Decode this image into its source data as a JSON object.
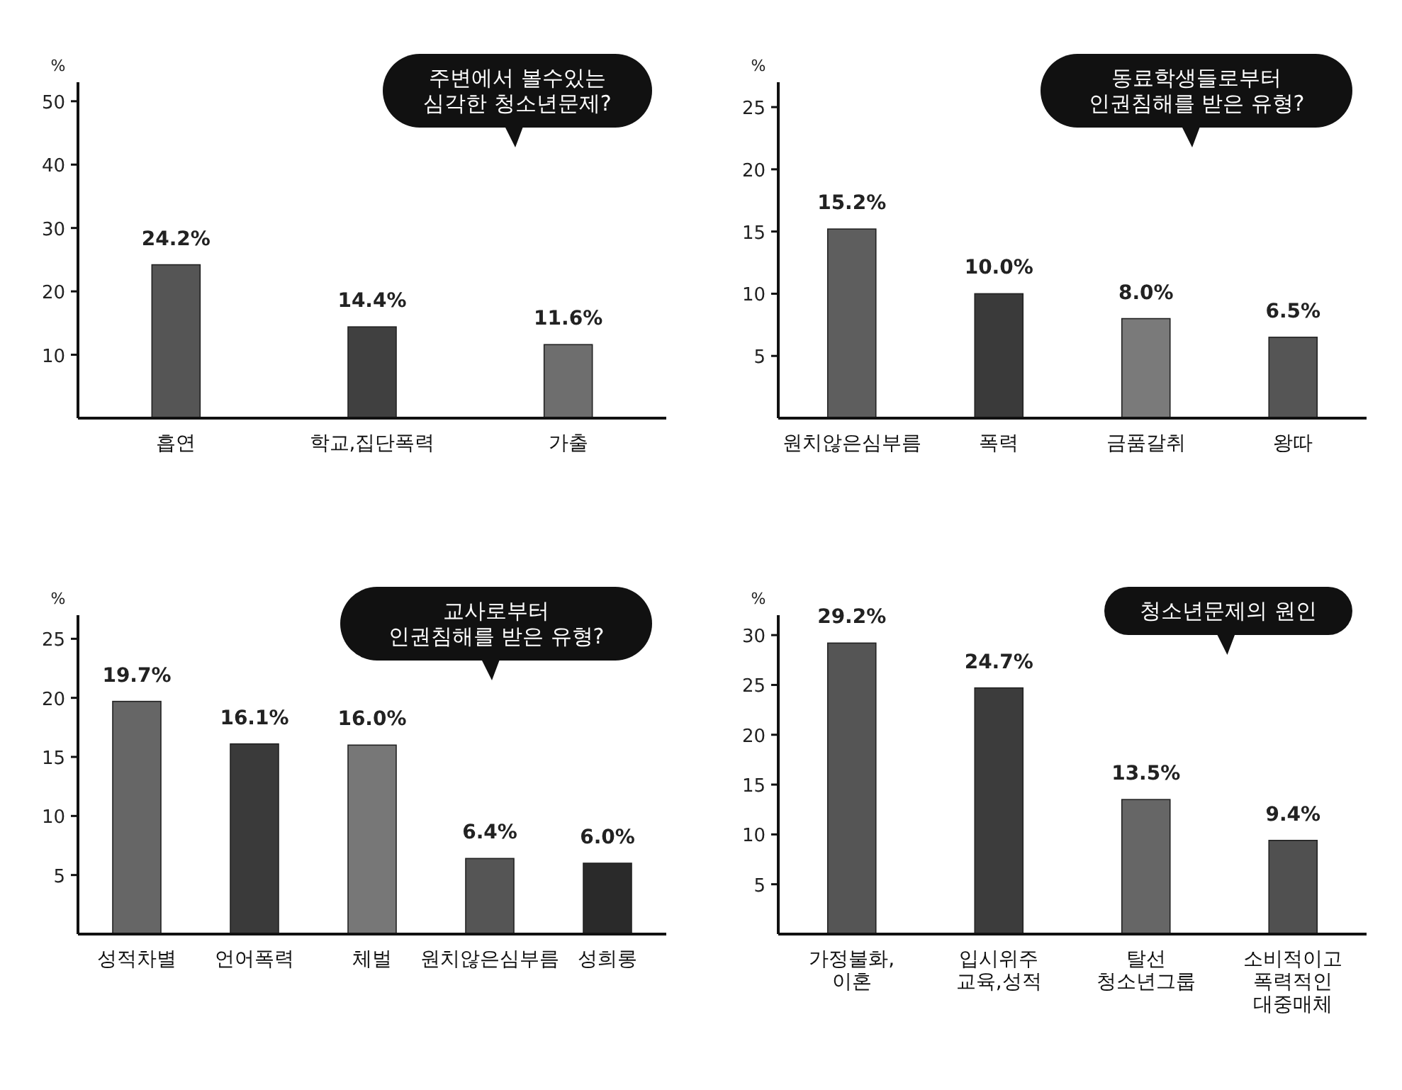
{
  "chart_data": [
    {
      "type": "bar",
      "title": "주변에서 볼수있는\n심각한 청소년문제?",
      "ylabel": "%",
      "categories": [
        "흡연",
        "학교,집단폭력",
        "가출"
      ],
      "values": [
        24.2,
        14.4,
        11.6
      ],
      "value_labels": [
        "24.2%",
        "14.4%",
        "11.6%"
      ],
      "colors": [
        "#555555",
        "#404040",
        "#6e6e6e"
      ],
      "ylim": [
        0,
        53
      ],
      "yticks": [
        10,
        20,
        30,
        40,
        50
      ]
    },
    {
      "type": "bar",
      "title": "동료학생들로부터\n인권침해를 받은 유형?",
      "ylabel": "%",
      "categories": [
        "원치않은심부름",
        "폭력",
        "금품갈취",
        "왕따"
      ],
      "values": [
        15.2,
        10.0,
        8.0,
        6.5
      ],
      "value_labels": [
        "15.2%",
        "10.0%",
        "8.0%",
        "6.5%"
      ],
      "colors": [
        "#5e5e5e",
        "#3a3a3a",
        "#7a7a7a",
        "#555555"
      ],
      "ylim": [
        0,
        27
      ],
      "yticks": [
        5,
        10,
        15,
        20,
        25
      ]
    },
    {
      "type": "bar",
      "title": "교사로부터\n인권침해를 받은 유형?",
      "ylabel": "%",
      "categories": [
        "성적차별",
        "언어폭력",
        "체벌",
        "원치않은심부름",
        "성희롱"
      ],
      "values": [
        19.7,
        16.1,
        16.0,
        6.4,
        6.0
      ],
      "value_labels": [
        "19.7%",
        "16.1%",
        "16.0%",
        "6.4%",
        "6.0%"
      ],
      "colors": [
        "#666666",
        "#3a3a3a",
        "#777777",
        "#555555",
        "#2a2a2a"
      ],
      "ylim": [
        0,
        27
      ],
      "yticks": [
        5,
        10,
        15,
        20,
        25
      ]
    },
    {
      "type": "bar",
      "title": "청소년문제의 원인",
      "ylabel": "%",
      "categories": [
        "가정불화,\n이혼",
        "입시위주\n교육,성적",
        "탈선\n청소년그룹",
        "소비적이고\n폭력적인\n대중매체"
      ],
      "values": [
        29.2,
        24.7,
        13.5,
        9.4
      ],
      "value_labels": [
        "29.2%",
        "24.7%",
        "13.5%",
        "9.4%"
      ],
      "colors": [
        "#555555",
        "#3c3c3c",
        "#666666",
        "#505050"
      ],
      "ylim": [
        0,
        32
      ],
      "yticks": [
        5,
        10,
        15,
        20,
        25,
        30
      ]
    }
  ]
}
